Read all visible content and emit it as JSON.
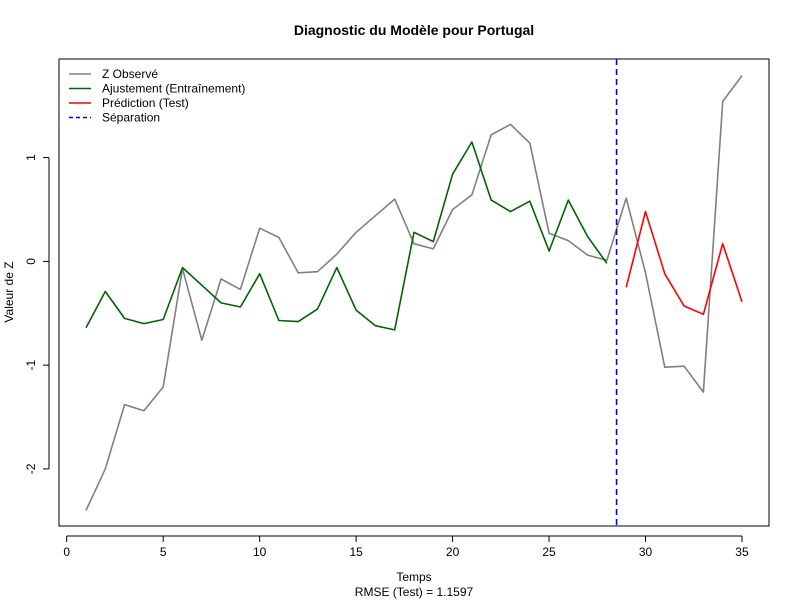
{
  "chart_data": {
    "type": "line",
    "title": "Diagnostic du Modèle pour Portugal",
    "xlabel": "Temps",
    "xlabel_sub": "RMSE (Test) = 1.1597",
    "ylabel": "Valeur de Z",
    "xlim": [
      -0.4,
      36.4
    ],
    "ylim": [
      -2.55,
      1.95
    ],
    "x_ticks": [
      0,
      5,
      10,
      15,
      20,
      25,
      30,
      35
    ],
    "y_ticks": [
      -2,
      -1,
      0,
      1
    ],
    "grid": false,
    "legend_position": "top-left",
    "series": [
      {
        "name": "Z Observé",
        "color": "#808080",
        "style": "solid",
        "x": [
          1,
          2,
          3,
          4,
          5,
          6,
          7,
          8,
          9,
          10,
          11,
          12,
          13,
          14,
          15,
          16,
          17,
          18,
          19,
          20,
          21,
          22,
          23,
          24,
          25,
          26,
          27,
          28,
          29,
          30,
          31,
          32,
          33,
          34,
          35
        ],
        "y": [
          -2.4,
          -2.0,
          -1.38,
          -1.44,
          -1.21,
          -0.07,
          -0.76,
          -0.17,
          -0.27,
          0.32,
          0.23,
          -0.11,
          -0.1,
          0.07,
          0.28,
          0.44,
          0.6,
          0.17,
          0.12,
          0.5,
          0.64,
          1.22,
          1.32,
          1.14,
          0.27,
          0.2,
          0.06,
          0.01,
          0.61,
          -0.11,
          -1.02,
          -1.01,
          -1.26,
          1.54,
          1.79
        ]
      },
      {
        "name": "Ajustement (Entraînement)",
        "color": "#006400",
        "style": "solid",
        "x": [
          1,
          2,
          3,
          4,
          5,
          6,
          7,
          8,
          9,
          10,
          11,
          12,
          13,
          14,
          15,
          16,
          17,
          18,
          19,
          20,
          21,
          22,
          23,
          24,
          25,
          26,
          27,
          28
        ],
        "y": [
          -0.64,
          -0.29,
          -0.55,
          -0.6,
          -0.56,
          -0.06,
          -0.23,
          -0.4,
          -0.44,
          -0.12,
          -0.57,
          -0.58,
          -0.46,
          -0.06,
          -0.47,
          -0.62,
          -0.66,
          0.28,
          0.19,
          0.84,
          1.15,
          0.59,
          0.48,
          0.58,
          0.1,
          0.59,
          0.24,
          -0.02
        ]
      },
      {
        "name": "Prédiction (Test)",
        "color": "#ff0000",
        "style": "solid",
        "x": [
          29,
          30,
          31,
          32,
          33,
          34,
          35
        ],
        "y": [
          -0.25,
          0.48,
          -0.12,
          -0.43,
          -0.51,
          0.17,
          -0.39
        ]
      }
    ],
    "separator": {
      "name": "Séparation",
      "x": 28.5,
      "color": "#0000ff",
      "style": "dashed"
    }
  }
}
